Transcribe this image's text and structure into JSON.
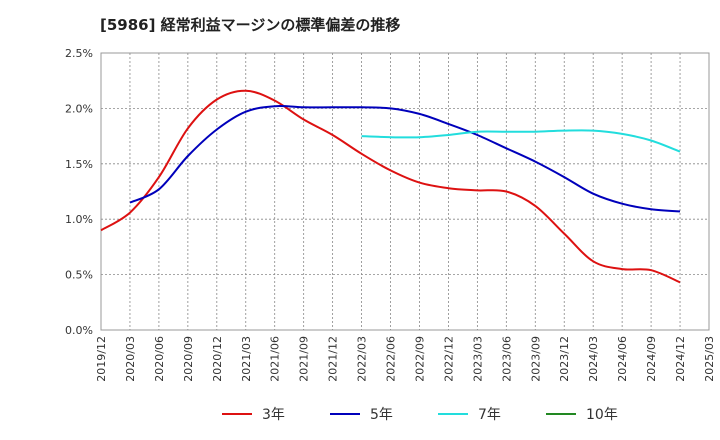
{
  "chart_data": {
    "type": "line",
    "title": "[5986]  経常利益マージンの標準偏差の推移",
    "xlabel": "",
    "ylabel": "",
    "x_ticks": [
      "2019/12",
      "2020/03",
      "2020/06",
      "2020/09",
      "2020/12",
      "2021/03",
      "2021/06",
      "2021/09",
      "2021/12",
      "2022/03",
      "2022/06",
      "2022/09",
      "2022/12",
      "2023/03",
      "2023/06",
      "2023/09",
      "2023/12",
      "2024/03",
      "2024/06",
      "2024/09",
      "2024/12",
      "2025/03"
    ],
    "y_ticks": [
      "0.0%",
      "0.5%",
      "1.0%",
      "1.5%",
      "2.0%",
      "2.5%"
    ],
    "ylim": [
      0,
      2.5
    ],
    "grid": true,
    "legend_position": "bottom",
    "series": [
      {
        "name": "3年",
        "color": "#dd1111",
        "points": [
          [
            "2019/12",
            0.9
          ],
          [
            "2020/03",
            1.06
          ],
          [
            "2020/06",
            1.38
          ],
          [
            "2020/09",
            1.82
          ],
          [
            "2020/12",
            2.08
          ],
          [
            "2021/03",
            2.16
          ],
          [
            "2021/06",
            2.07
          ],
          [
            "2021/09",
            1.9
          ],
          [
            "2021/12",
            1.76
          ],
          [
            "2022/03",
            1.59
          ],
          [
            "2022/06",
            1.44
          ],
          [
            "2022/09",
            1.33
          ],
          [
            "2022/12",
            1.28
          ],
          [
            "2023/03",
            1.26
          ],
          [
            "2023/06",
            1.25
          ],
          [
            "2023/09",
            1.12
          ],
          [
            "2023/12",
            0.87
          ],
          [
            "2024/03",
            0.62
          ],
          [
            "2024/06",
            0.55
          ],
          [
            "2024/09",
            0.54
          ],
          [
            "2024/12",
            0.43
          ]
        ]
      },
      {
        "name": "5年",
        "color": "#0000bb",
        "points": [
          [
            "2020/03",
            1.15
          ],
          [
            "2020/06",
            1.27
          ],
          [
            "2020/09",
            1.57
          ],
          [
            "2020/12",
            1.81
          ],
          [
            "2021/03",
            1.97
          ],
          [
            "2021/06",
            2.02
          ],
          [
            "2021/09",
            2.01
          ],
          [
            "2021/12",
            2.01
          ],
          [
            "2022/03",
            2.01
          ],
          [
            "2022/06",
            2.0
          ],
          [
            "2022/09",
            1.95
          ],
          [
            "2022/12",
            1.86
          ],
          [
            "2023/03",
            1.76
          ],
          [
            "2023/06",
            1.64
          ],
          [
            "2023/09",
            1.52
          ],
          [
            "2023/12",
            1.38
          ],
          [
            "2024/03",
            1.23
          ],
          [
            "2024/06",
            1.14
          ],
          [
            "2024/09",
            1.09
          ],
          [
            "2024/12",
            1.07
          ]
        ]
      },
      {
        "name": "7年",
        "color": "#22dddd",
        "points": [
          [
            "2022/03",
            1.75
          ],
          [
            "2022/06",
            1.74
          ],
          [
            "2022/09",
            1.74
          ],
          [
            "2022/12",
            1.76
          ],
          [
            "2023/03",
            1.79
          ],
          [
            "2023/06",
            1.79
          ],
          [
            "2023/09",
            1.79
          ],
          [
            "2023/12",
            1.8
          ],
          [
            "2024/03",
            1.8
          ],
          [
            "2024/06",
            1.77
          ],
          [
            "2024/09",
            1.71
          ],
          [
            "2024/12",
            1.61
          ]
        ]
      },
      {
        "name": "10年",
        "color": "#228822",
        "points": []
      }
    ]
  }
}
